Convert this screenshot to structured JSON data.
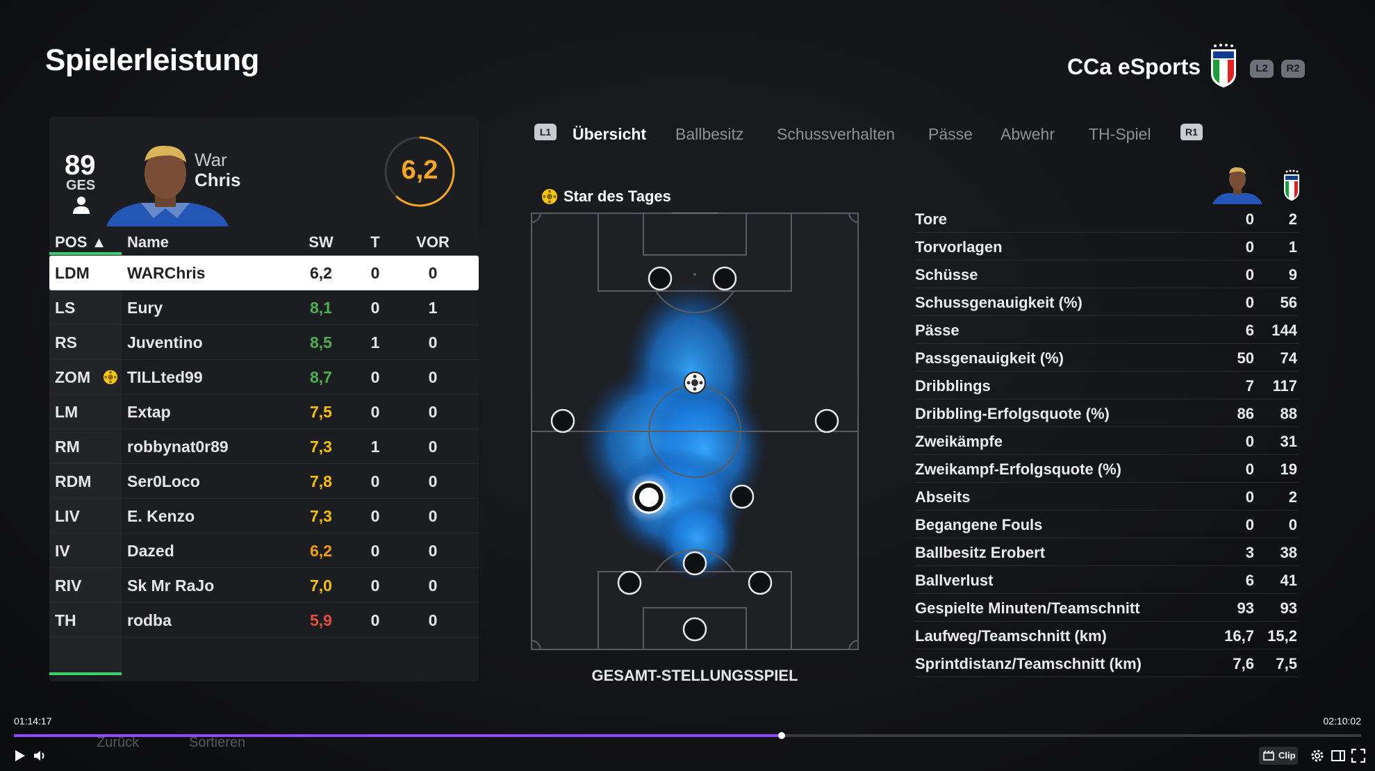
{
  "header": {
    "title": "Spielerleistung",
    "team_name": "CCa eSports",
    "crest_text": "ITALIA",
    "l2": "L2",
    "r2": "R2"
  },
  "player_card": {
    "overall": "89",
    "overall_label": "GES",
    "first_name": "War",
    "last_name": "Chris",
    "rating": "6,2",
    "rating_fraction": 0.62
  },
  "table": {
    "headers": {
      "pos": "POS ▲",
      "name": "Name",
      "sw": "SW",
      "t": "T",
      "vor": "VOR"
    },
    "rows": [
      {
        "pos": "LDM",
        "name": "WARChris",
        "sw": "6,2",
        "t": "0",
        "vor": "0",
        "sw_color": "#222222",
        "selected": true
      },
      {
        "pos": "LS",
        "name": "Eury",
        "sw": "8,1",
        "t": "0",
        "vor": "1",
        "sw_color": "#4caf50"
      },
      {
        "pos": "RS",
        "name": "Juventino",
        "sw": "8,5",
        "t": "1",
        "vor": "0",
        "sw_color": "#4caf50"
      },
      {
        "pos": "ZOM",
        "name": "TILLted99",
        "sw": "8,7",
        "t": "0",
        "vor": "0",
        "sw_color": "#4caf50",
        "star": true
      },
      {
        "pos": "LM",
        "name": "Extap",
        "sw": "7,5",
        "t": "0",
        "vor": "0",
        "sw_color": "#f5c000"
      },
      {
        "pos": "RM",
        "name": "robbynat0r89",
        "sw": "7,3",
        "t": "1",
        "vor": "0",
        "sw_color": "#f5c000"
      },
      {
        "pos": "RDM",
        "name": "Ser0Loco",
        "sw": "7,8",
        "t": "0",
        "vor": "0",
        "sw_color": "#f5c000"
      },
      {
        "pos": "LIV",
        "name": "E. Kenzo",
        "sw": "7,3",
        "t": "0",
        "vor": "0",
        "sw_color": "#f5c000"
      },
      {
        "pos": "IV",
        "name": "Dazed",
        "sw": "6,2",
        "t": "0",
        "vor": "0",
        "sw_color": "#f39c12"
      },
      {
        "pos": "RIV",
        "name": "Sk Mr RaJo",
        "sw": "7,0",
        "t": "0",
        "vor": "0",
        "sw_color": "#f5c000"
      },
      {
        "pos": "TH",
        "name": "rodba",
        "sw": "5,9",
        "t": "0",
        "vor": "0",
        "sw_color": "#e74c3c"
      }
    ]
  },
  "tabs": {
    "l1": "L1",
    "r1": "R1",
    "items": [
      "Übersicht",
      "Ballbesitz",
      "Schussverhalten",
      "Pässe",
      "Abwehr",
      "TH-Spiel"
    ]
  },
  "pitch": {
    "star_of_day": "Star des Tages",
    "caption": "GESAMT-STELLUNGSSPIEL"
  },
  "stats": [
    {
      "label": "Tore",
      "player": "0",
      "team": "2"
    },
    {
      "label": "Torvorlagen",
      "player": "0",
      "team": "1"
    },
    {
      "label": "Schüsse",
      "player": "0",
      "team": "9"
    },
    {
      "label": "Schussgenauigkeit (%)",
      "player": "0",
      "team": "56"
    },
    {
      "label": "Pässe",
      "player": "6",
      "team": "144"
    },
    {
      "label": "Passgenauigkeit (%)",
      "player": "50",
      "team": "74"
    },
    {
      "label": "Dribblings",
      "player": "7",
      "team": "117"
    },
    {
      "label": "Dribbling-Erfolgsquote (%)",
      "player": "86",
      "team": "88"
    },
    {
      "label": "Zweikämpfe",
      "player": "0",
      "team": "31"
    },
    {
      "label": "Zweikampf-Erfolgsquote (%)",
      "player": "0",
      "team": "19"
    },
    {
      "label": "Abseits",
      "player": "0",
      "team": "2"
    },
    {
      "label": "Begangene Fouls",
      "player": "0",
      "team": "0"
    },
    {
      "label": "Ballbesitz Erobert",
      "player": "3",
      "team": "38"
    },
    {
      "label": "Ballverlust",
      "player": "6",
      "team": "41"
    },
    {
      "label": "Gespielte Minuten/Teamschnitt",
      "player": "93",
      "team": "93"
    },
    {
      "label": "Laufweg/Teamschnitt (km)",
      "player": "16,7",
      "team": "15,2"
    },
    {
      "label": "Sprintdistanz/Teamschnitt (km)",
      "player": "7,6",
      "team": "7,5"
    }
  ],
  "video": {
    "time_current": "01:14:17",
    "time_total": "02:10:02",
    "progress_fraction": 0.57,
    "back_label": "Zurück",
    "sort_label": "Sortieren",
    "clip_label": "Clip",
    "accent": "#9146ff"
  }
}
